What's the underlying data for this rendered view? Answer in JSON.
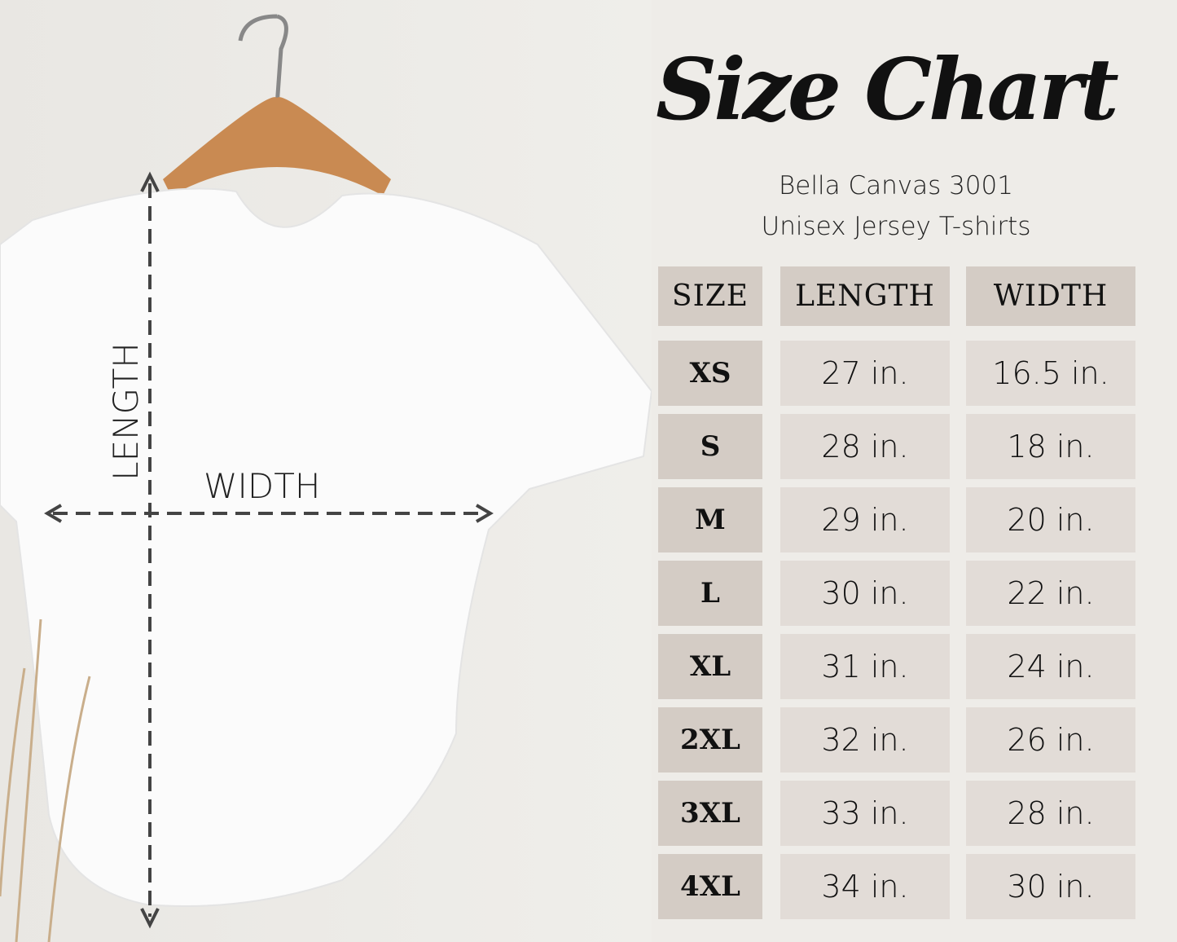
{
  "title": "Size Chart",
  "subtitle_line1": "Bella Canvas 3001",
  "subtitle_line2": "Unisex Jersey T-shirts",
  "photo_labels": {
    "length": "LENGTH",
    "width": "WIDTH"
  },
  "colors": {
    "background": "#eeece8",
    "header_cell": "#d4ccc5",
    "value_cell": "#e2dcd7",
    "text": "#111111"
  },
  "table": {
    "headers": [
      "SIZE",
      "LENGTH",
      "WIDTH"
    ],
    "rows": [
      [
        "XS",
        "27 in.",
        "16.5 in."
      ],
      [
        "S",
        "28 in.",
        "18 in."
      ],
      [
        "M",
        "29 in.",
        "20 in."
      ],
      [
        "L",
        "30 in.",
        "22 in."
      ],
      [
        "XL",
        "31 in.",
        "24 in."
      ],
      [
        "2XL",
        "32 in.",
        "26 in."
      ],
      [
        "3XL",
        "33 in.",
        "28 in."
      ],
      [
        "4XL",
        "34 in.",
        "30 in."
      ]
    ]
  }
}
